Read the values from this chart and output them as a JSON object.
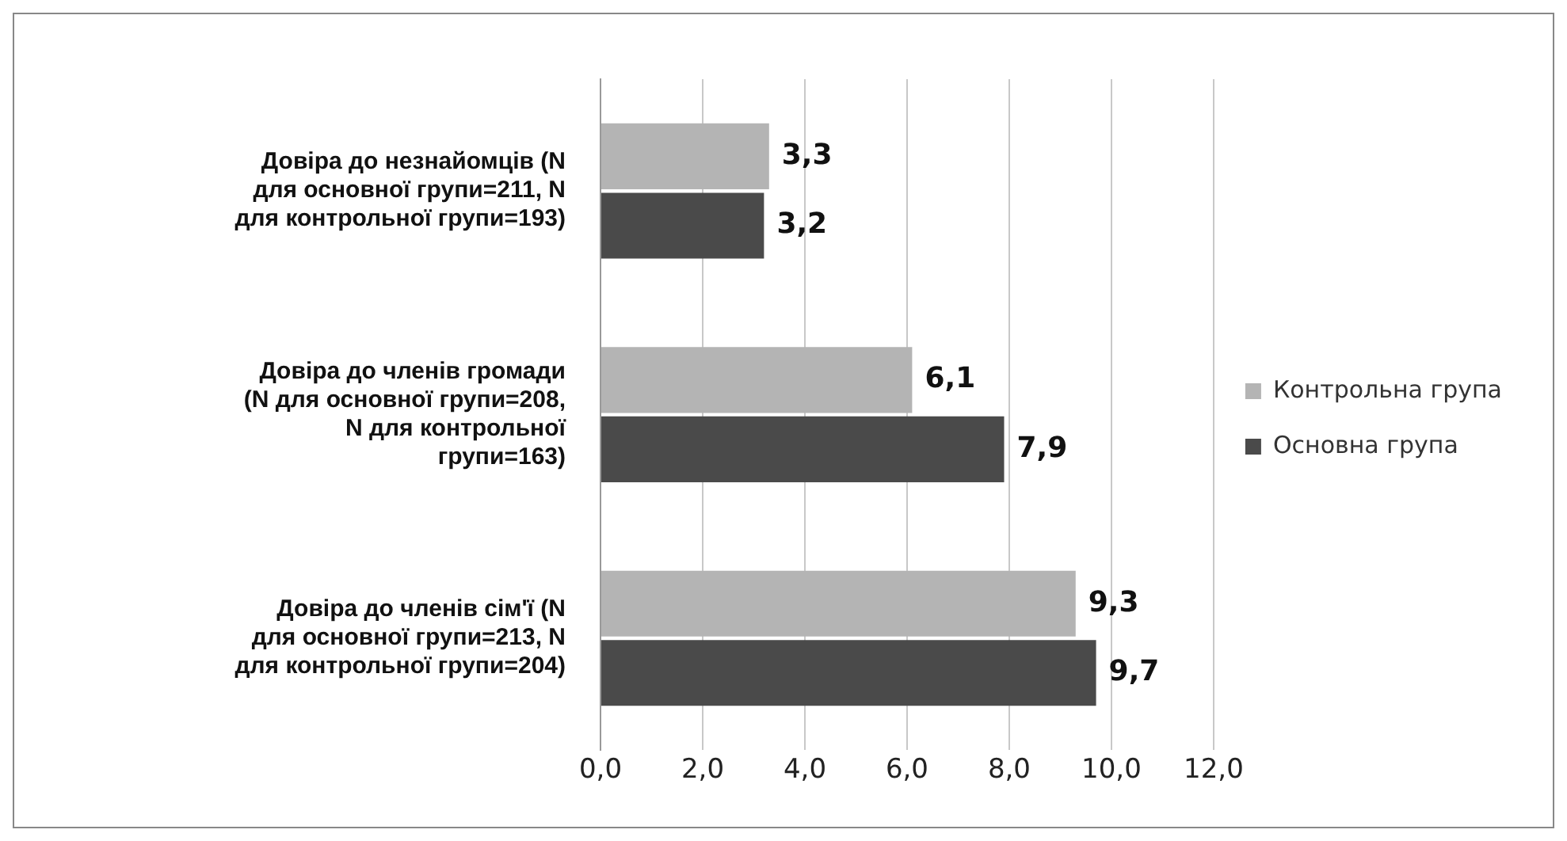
{
  "chart_data": {
    "type": "bar",
    "orientation": "horizontal",
    "categories": [
      "Довіра до незнайомців (N для основної групи=211, N для контрольної групи=193)",
      "Довіра до членів громади (N для основної групи=208, N для контрольної групи=163)",
      "Довіра до членів сім'ї (N для основної групи=213, N для контрольної групи=204)"
    ],
    "series": [
      {
        "name": "Контрольна група",
        "color": "#b4b4b4",
        "values": [
          3.3,
          6.1,
          9.3
        ],
        "value_labels": [
          "3,3",
          "6,1",
          "9,3"
        ]
      },
      {
        "name": "Основна група",
        "color": "#4a4a4a",
        "values": [
          3.2,
          7.9,
          9.7
        ],
        "value_labels": [
          "3,2",
          "7,9",
          "9,7"
        ]
      }
    ],
    "xlim": [
      0,
      12
    ],
    "xticks": [
      {
        "value": 0,
        "label": "0,0"
      },
      {
        "value": 2,
        "label": "2,0"
      },
      {
        "value": 4,
        "label": "4,0"
      },
      {
        "value": 6,
        "label": "6,0"
      },
      {
        "value": 8,
        "label": "8,0"
      },
      {
        "value": 10,
        "label": "10,0"
      },
      {
        "value": 12,
        "label": "12,0"
      }
    ],
    "grid": "x",
    "legend": "right"
  }
}
